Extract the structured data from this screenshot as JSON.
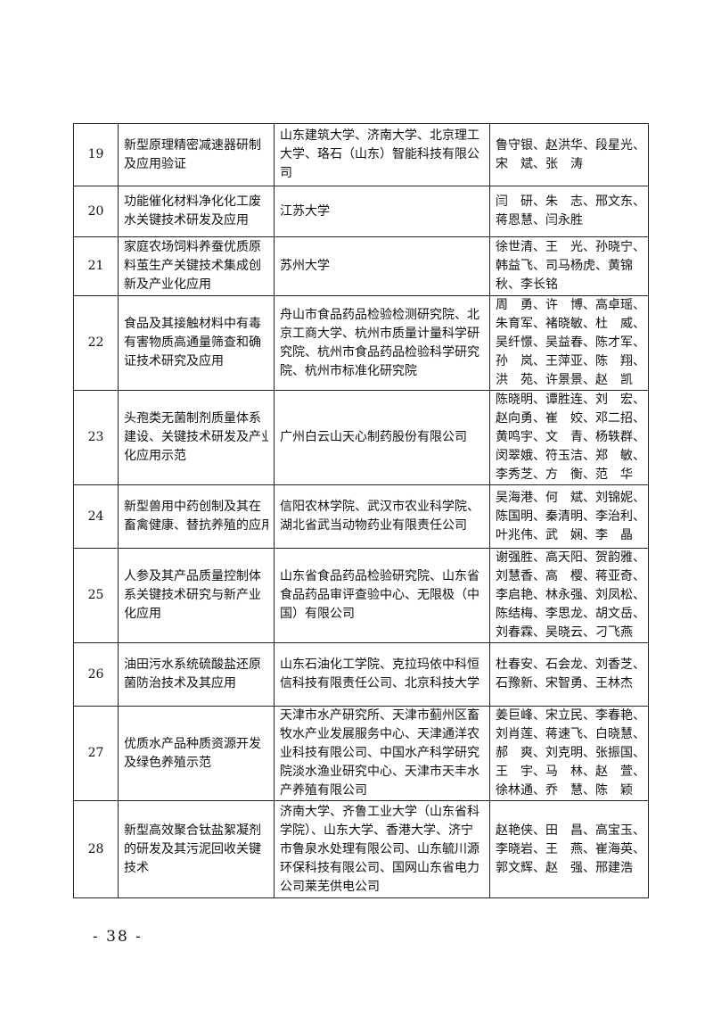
{
  "rows": [
    {
      "no": "19",
      "project": [
        "新型原理精密减速器研制",
        "及应用验证"
      ],
      "units": [
        "山东建筑大学、济南大学、北京理工",
        "大学、珞石（山东）智能科技有限公",
        "司"
      ],
      "people": [
        "鲁守银、赵洪华、段星光、",
        "宋　斌、张　涛"
      ],
      "h": 70
    },
    {
      "no": "20",
      "project": [
        "功能催化材料净化化工废",
        "水关键技术研发及应用"
      ],
      "units": [
        "江苏大学"
      ],
      "people": [
        "闫　研、朱　志、邢文东、",
        "蒋恩慧、闫永胜"
      ],
      "h": 57
    },
    {
      "no": "21",
      "project": [
        "家庭农场饲料养蚕优质原",
        "料茧生产关键技术集成创",
        "新及产业化应用"
      ],
      "units": [
        "苏州大学"
      ],
      "people": [
        "徐世清、王　光、孙晓宁、",
        "韩益飞、司马杨虎、黄锦",
        "秋、李长铭"
      ],
      "h": 66
    },
    {
      "no": "22",
      "project": [
        "食品及其接触材料中有毒",
        "有害物质高通量筛查和确",
        "证技术研究及应用"
      ],
      "units": [
        "舟山市食品药品检验检测研究院、北",
        "京工商大学、杭州市质量计量科学研",
        "究院、杭州市食品药品检验科学研究",
        "院、杭州市标准化研究院"
      ],
      "people": [
        "周　勇、许　博、高卓瑶、",
        "朱育军、褚晓敏、杜　威、",
        "吴纤憬、吴益春、陈才军、",
        "孙　岚、王萍亚、陈　翔、",
        "洪　苑、许景景、赵　凯"
      ],
      "h": 106
    },
    {
      "no": "23",
      "project": [
        "头孢类无菌制剂质量体系",
        "建设、关键技术研发及产业",
        "化应用示范"
      ],
      "units": [
        "广州白云山天心制药股份有限公司"
      ],
      "people": [
        "陈晓明、谭胜连、刘　宏、",
        "赵向勇、崔　姣、邓二招、",
        "黄鸣宇、文　青、杨轶群、",
        "闵翠娥、符玉洁、郑　敏、",
        "李秀芝、方　衡、范　华"
      ],
      "h": 104
    },
    {
      "no": "24",
      "project": [
        "新型兽用中药创制及其在",
        "畜禽健康、替抗养殖的应用"
      ],
      "units": [
        "信阳农林学院、武汉市农业科学院、",
        "湖北省武当动物药业有限责任公司"
      ],
      "people": [
        "吴海港、何　斌、刘锦妮、",
        "陈国明、秦清明、李治利、",
        "叶兆伟、武　娴、李　晶"
      ],
      "h": 71
    },
    {
      "no": "25",
      "project": [
        "人参及其产品质量控制体",
        "系关键技术研究与新产业",
        "化应用"
      ],
      "units": [
        "山东省食品药品检验研究院、山东省",
        "食品药品审评查验中心、无限极（中",
        "国）有限公司"
      ],
      "people": [
        "谢强胜、高天阳、贺韵雅、",
        "刘慧香、高　樱、蒋亚奇、",
        "李启艳、林永强、刘凤松、",
        "陈结梅、李思龙、胡文岳、",
        "刘春霖、吴晓云、刁飞燕"
      ],
      "h": 105
    },
    {
      "no": "26",
      "project": [
        "油田污水系统硫酸盐还原",
        "菌防治技术及其应用"
      ],
      "units": [
        "山东石油化工学院、克拉玛依中科恒",
        "信科技有限责任公司、北京科技大学"
      ],
      "people": [
        "杜春安、石会龙、刘香芝、",
        "石豫新、宋智勇、王林杰"
      ],
      "h": 71
    },
    {
      "no": "27",
      "project": [
        "优质水产品种质资源开发",
        "及绿色养殖示范"
      ],
      "units": [
        "天津市水产研究所、天津市蓟州区畜",
        "牧水产业发展服务中心、天津通洋农",
        "业科技有限公司、中国水产科学研究",
        "院淡水渔业研究中心、天津市天丰水",
        "产养殖有限公司"
      ],
      "people": [
        "姜巨峰、宋立民、李春艳、",
        "刘肖莲、蒋速飞、白晓慧、",
        "郝　爽、刘克明、张振国、",
        "王　宇、马　林、赵　萱、",
        "徐林通、乔　慧、陈　颖"
      ],
      "h": 101
    },
    {
      "no": "28",
      "project": [
        "新型高效聚合钛盐絮凝剂",
        "的研发及其污泥回收关键",
        "技术"
      ],
      "units": [
        "济南大学、齐鲁工业大学（山东省科",
        "学院）、山东大学、香港大学、济宁",
        "市鲁泉水处理有限公司、山东毓川源",
        "环保科技有限公司、国网山东省电力",
        "公司莱芜供电公司"
      ],
      "people": [
        "赵艳侠、田　昌、高宝玉、",
        "李晓岩、王　燕、崔海英、",
        "郭文辉、赵　强、邢建浩"
      ],
      "h": 109
    }
  ],
  "page_number": "- 38 -"
}
